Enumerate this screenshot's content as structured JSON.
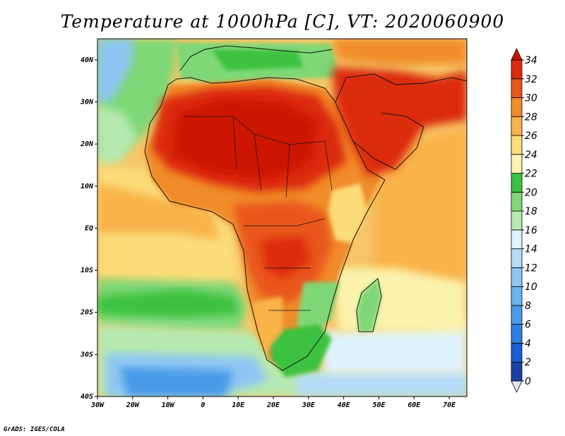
{
  "title": "Temperature at 1000hPa [C], VT: 2020060900",
  "credit": "GrADS: IGES/COLA",
  "map": {
    "lon_range": [
      -30,
      75
    ],
    "lat_range": [
      -40,
      45
    ],
    "lon_ticks": [
      "30W",
      "20W",
      "10W",
      "0",
      "10E",
      "20E",
      "30E",
      "40E",
      "50E",
      "60E",
      "70E"
    ],
    "lat_ticks": [
      "40N",
      "30N",
      "20N",
      "10N",
      "EQ",
      "10S",
      "20S",
      "30S",
      "40S"
    ]
  },
  "colorbar": {
    "levels": [
      "0",
      "2",
      "4",
      "6",
      "8",
      "10",
      "12",
      "14",
      "16",
      "18",
      "20",
      "22",
      "24",
      "26",
      "28",
      "30",
      "32",
      "34"
    ],
    "colors": [
      "#160b6b",
      "#1b3fa6",
      "#1a5fd1",
      "#2f7fe4",
      "#4a9be8",
      "#6ab1ef",
      "#8ec6f3",
      "#b5dcf6",
      "#dff3fb",
      "#b6eab0",
      "#7ed876",
      "#3cc13f",
      "#fbf3ac",
      "#fbdc78",
      "#f8b34a",
      "#f18c2b",
      "#e9561b",
      "#dc2c0c",
      "#cc1400"
    ],
    "under_color": "#e4e4f6"
  }
}
